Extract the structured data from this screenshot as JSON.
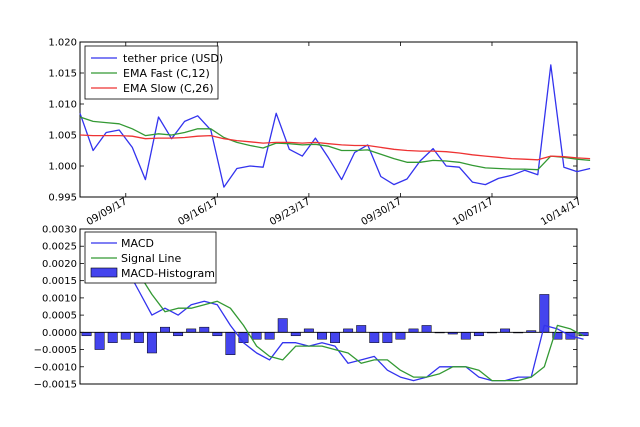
{
  "chart_data": [
    {
      "type": "line",
      "title": "",
      "xlabel": "",
      "ylabel": "",
      "x_range": [
        0,
        38
      ],
      "ylim": [
        0.995,
        1.02
      ],
      "y_ticks": [
        "0.995",
        "1.000",
        "1.005",
        "1.010",
        "1.015",
        "1.020"
      ],
      "x_ticks": [
        {
          "index": 3.5,
          "label": "09/09/17"
        },
        {
          "index": 10.5,
          "label": "09/16/17"
        },
        {
          "index": 17.5,
          "label": "09/23/17"
        },
        {
          "index": 24.5,
          "label": "09/30/17"
        },
        {
          "index": 31.5,
          "label": "10/07/17"
        },
        {
          "index": 38.5,
          "label": "10/14/17"
        }
      ],
      "legend": [
        "tether price (USD)",
        "EMA Fast (C,12)",
        "EMA Slow (C,26)"
      ],
      "legend_position": "top-left",
      "series": [
        {
          "name": "tether price (USD)",
          "color": "#3333ee",
          "values": [
            1.0085,
            1.0025,
            1.0054,
            1.0058,
            1.003,
            0.9978,
            1.0079,
            1.0044,
            1.0072,
            1.0081,
            1.0058,
            0.9966,
            0.9996,
            1.0,
            0.9998,
            1.0085,
            1.0027,
            1.0016,
            1.0045,
            1.0013,
            0.9978,
            1.0022,
            1.0034,
            0.9983,
            0.997,
            0.9979,
            1.0008,
            1.0028,
            1.0,
            0.9998,
            0.9974,
            0.997,
            0.998,
            0.9985,
            0.9993,
            0.9986,
            1.0163,
            0.9998,
            0.9991,
            0.9996
          ]
        },
        {
          "name": "EMA Fast (C,12)",
          "color": "#339933",
          "values": [
            1.0079,
            1.0072,
            1.007,
            1.0068,
            1.006,
            1.0049,
            1.0052,
            1.005,
            1.0054,
            1.006,
            1.006,
            1.0046,
            1.0038,
            1.0033,
            1.0029,
            1.0037,
            1.0036,
            1.0034,
            1.0035,
            1.0032,
            1.0025,
            1.0025,
            1.0026,
            1.0019,
            1.0012,
            1.0006,
            1.0006,
            1.0009,
            1.0008,
            1.0006,
            1.0001,
            0.9997,
            0.9996,
            0.9995,
            0.9995,
            0.9994,
            1.0016,
            1.0014,
            1.0011,
            1.0009
          ]
        },
        {
          "name": "EMA Slow (C,26)",
          "color": "#ee3333",
          "values": [
            1.005,
            1.0049,
            1.0049,
            1.0049,
            1.0048,
            1.0044,
            1.0045,
            1.0045,
            1.0046,
            1.0048,
            1.0049,
            1.0044,
            1.0041,
            1.0039,
            1.0037,
            1.0038,
            1.0038,
            1.0037,
            1.0038,
            1.0036,
            1.0034,
            1.0033,
            1.0033,
            1.003,
            1.0027,
            1.0025,
            1.0024,
            1.0024,
            1.0023,
            1.0021,
            1.0018,
            1.0016,
            1.0014,
            1.0012,
            1.0011,
            1.001,
            1.0016,
            1.0015,
            1.0013,
            1.0012
          ]
        }
      ]
    },
    {
      "type": "line",
      "title": "",
      "xlabel": "",
      "ylabel": "",
      "x_range": [
        0,
        38
      ],
      "ylim": [
        -0.0015,
        0.003
      ],
      "y_ticks": [
        "−0.0015",
        "−0.0010",
        "−0.0005",
        "0.0000",
        "0.0005",
        "0.0010",
        "0.0015",
        "0.0020",
        "0.0025",
        "0.0030"
      ],
      "legend": [
        "MACD",
        "Signal Line",
        "MACD-Histogram"
      ],
      "legend_position": "top-left",
      "series": [
        {
          "name": "MACD",
          "color": "#3333ee",
          "values": [
            0.0029,
            0.0023,
            0.0021,
            0.0019,
            0.0012,
            0.0005,
            0.0007,
            0.0005,
            0.0008,
            0.0009,
            0.0008,
            0.0002,
            -0.0003,
            -0.0006,
            -0.0008,
            -0.0003,
            -0.0003,
            -0.0004,
            -0.0003,
            -0.0004,
            -0.0009,
            -0.0008,
            -0.0007,
            -0.0011,
            -0.0013,
            -0.0014,
            -0.0013,
            -0.001,
            -0.001,
            -0.001,
            -0.0013,
            -0.0014,
            -0.0014,
            -0.0013,
            -0.0013,
            0.0002,
            0.0001,
            -0.0001,
            -0.0002
          ]
        },
        {
          "name": "Signal Line",
          "color": "#339933",
          "values": [
            0.0029,
            0.0027,
            0.0025,
            0.0022,
            0.0017,
            0.0011,
            0.0006,
            0.0007,
            0.0007,
            0.0008,
            0.0009,
            0.0007,
            0.0002,
            -0.0004,
            -0.0007,
            -0.0008,
            -0.0004,
            -0.0004,
            -0.0004,
            -0.0005,
            -0.0006,
            -0.0009,
            -0.0008,
            -0.0008,
            -0.0011,
            -0.0013,
            -0.0013,
            -0.0012,
            -0.001,
            -0.001,
            -0.0011,
            -0.0014,
            -0.0014,
            -0.0014,
            -0.0013,
            -0.001,
            0.0002,
            0.0001,
            -0.0001
          ]
        },
        {
          "name": "MACD-Histogram",
          "color": "#4444ee",
          "values": [
            -0.0001,
            -0.0005,
            -0.0003,
            -0.0002,
            -0.0003,
            -0.0006,
            0.00015,
            -0.0001,
            0.0001,
            0.00015,
            -0.0001,
            -0.00065,
            -0.0003,
            -0.0002,
            -0.0002,
            0.0004,
            -0.0001,
            0.0001,
            -0.0002,
            -0.0003,
            0.0001,
            0.0002,
            -0.0003,
            -0.0003,
            -0.0002,
            0.0001,
            0.0002,
            0.0,
            -5e-05,
            -0.0002,
            -0.0001,
            0.0,
            0.0001,
            0.0,
            5e-05,
            0.0011,
            -0.0002,
            -0.0002,
            -0.0001
          ]
        }
      ]
    }
  ]
}
